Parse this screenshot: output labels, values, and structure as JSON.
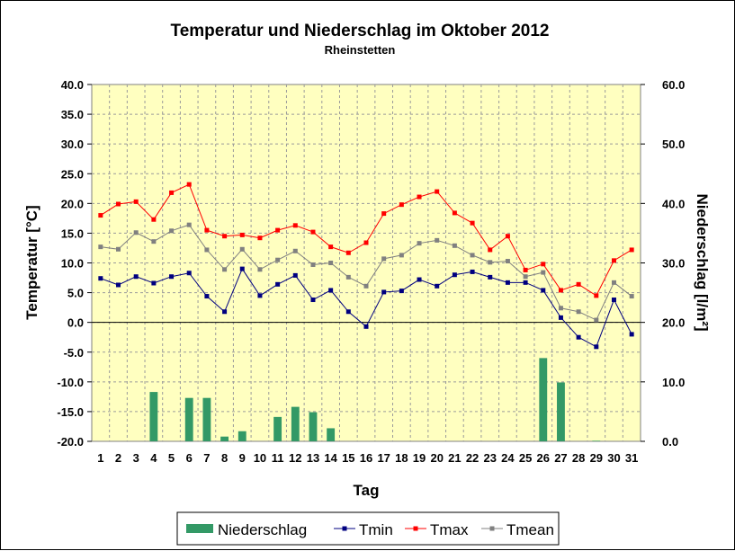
{
  "chart_data": {
    "type": "bar",
    "title": "Temperatur und Niederschlag im Oktober 2012",
    "subtitle": "Rheinstetten",
    "xlabel": "Tag",
    "ylabel_left": "Temperatur [°C]",
    "ylabel_right": "Niederschlag [l/m²]",
    "ylim_left": [
      -20,
      40
    ],
    "ylim_right": [
      0,
      60
    ],
    "y_left_ticks": [
      "40.0",
      "35.0",
      "30.0",
      "25.0",
      "20.0",
      "15.0",
      "10.0",
      "5.0",
      "0.0",
      "-5.0",
      "-10.0",
      "-15.0",
      "-20.0"
    ],
    "y_right_ticks": [
      "60.0",
      "50.0",
      "40.0",
      "30.0",
      "20.0",
      "10.0",
      "0.0"
    ],
    "categories": [
      "1",
      "2",
      "3",
      "4",
      "5",
      "6",
      "7",
      "8",
      "9",
      "10",
      "11",
      "12",
      "13",
      "14",
      "15",
      "16",
      "17",
      "18",
      "19",
      "20",
      "21",
      "22",
      "23",
      "24",
      "25",
      "26",
      "27",
      "28",
      "29",
      "30",
      "31"
    ],
    "grid": true,
    "legend_position": "bottom",
    "series": [
      {
        "name": "Niederschlag",
        "kind": "bar",
        "axis": "right",
        "color": "#339966",
        "values": [
          0,
          0,
          0,
          8.3,
          0,
          7.3,
          7.3,
          0.8,
          1.7,
          0,
          4.1,
          5.8,
          4.9,
          2.2,
          0,
          0,
          0,
          0,
          0,
          0,
          0,
          0,
          0,
          0,
          0,
          14.0,
          9.9,
          0,
          0.1,
          0,
          0
        ]
      },
      {
        "name": "Tmin",
        "kind": "line",
        "axis": "left",
        "color": "#000080",
        "values": [
          7.4,
          6.3,
          7.7,
          6.6,
          7.7,
          8.3,
          4.4,
          1.8,
          9.0,
          4.5,
          6.4,
          7.9,
          3.8,
          5.4,
          1.8,
          -0.7,
          5.1,
          5.3,
          7.2,
          6.1,
          8.0,
          8.5,
          7.6,
          6.7,
          6.7,
          5.4,
          0.8,
          -2.5,
          -4.1,
          3.8,
          -2.0
        ]
      },
      {
        "name": "Tmax",
        "kind": "line",
        "axis": "left",
        "color": "#ff0000",
        "values": [
          18.0,
          19.9,
          20.3,
          17.3,
          21.8,
          23.2,
          15.5,
          14.5,
          14.7,
          14.2,
          15.5,
          16.3,
          15.2,
          12.7,
          11.7,
          13.4,
          18.3,
          19.8,
          21.1,
          22.0,
          18.4,
          16.7,
          12.2,
          14.5,
          8.8,
          9.8,
          5.4,
          6.4,
          4.5,
          10.4,
          12.2
        ]
      },
      {
        "name": "Tmean",
        "kind": "line",
        "axis": "left",
        "color": "#808080",
        "values": [
          12.7,
          12.3,
          15.1,
          13.6,
          15.4,
          16.4,
          12.2,
          8.9,
          12.3,
          8.9,
          10.5,
          12.0,
          9.7,
          10.0,
          7.6,
          6.1,
          10.7,
          11.3,
          13.3,
          13.8,
          12.9,
          11.3,
          10.1,
          10.3,
          7.7,
          8.4,
          2.4,
          1.8,
          0.4,
          6.7,
          4.4
        ]
      }
    ]
  }
}
